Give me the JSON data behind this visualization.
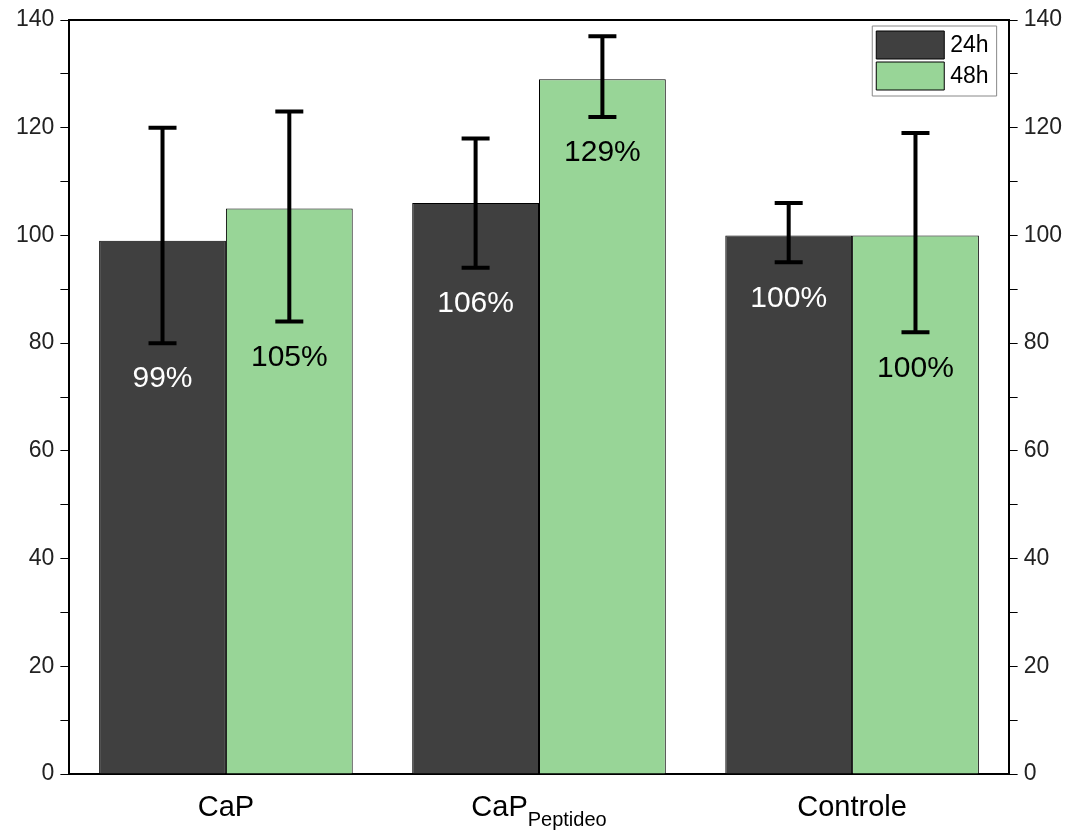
{
  "chart_data": {
    "type": "bar",
    "categories": [
      "CaP",
      "CaP$_{Peptideo}$",
      "Controle"
    ],
    "series": [
      {
        "name": "24h",
        "color": "#404040",
        "values": [
          99,
          106,
          100
        ],
        "errors": [
          [
            80,
            120
          ],
          [
            94,
            118
          ],
          [
            95,
            106
          ]
        ],
        "value_labels": [
          "99%",
          "106%",
          "100%"
        ]
      },
      {
        "name": "48h",
        "color": "#98d597",
        "values": [
          105,
          129,
          100
        ],
        "errors": [
          [
            84,
            123
          ],
          [
            122,
            137
          ],
          [
            82,
            119
          ]
        ],
        "value_labels": [
          "105%",
          "129%",
          "100%"
        ]
      }
    ],
    "ylim": [
      0,
      140
    ],
    "yticks": [
      0,
      {
        "value": 10,
        "label": null
      },
      20,
      {
        "value": 30,
        "label": null
      },
      40,
      {
        "value": 50,
        "label": null
      },
      60,
      {
        "value": 70,
        "label": null
      },
      80,
      {
        "value": 90,
        "label": null
      },
      100,
      {
        "value": 110,
        "label": null
      },
      120,
      {
        "value": 130,
        "label": null
      },
      140
    ],
    "y2lim": [
      0,
      140
    ],
    "y2ticks": [
      0,
      {
        "value": 10,
        "label": null
      },
      20,
      {
        "value": 30,
        "label": null
      },
      40,
      {
        "value": 50,
        "label": null
      },
      60,
      {
        "value": 70,
        "label": null
      },
      80,
      {
        "value": 90,
        "label": null
      },
      100,
      {
        "value": 110,
        "label": null
      },
      120,
      {
        "value": 130,
        "label": null
      },
      140
    ],
    "grid": false,
    "legend": "top right"
  }
}
